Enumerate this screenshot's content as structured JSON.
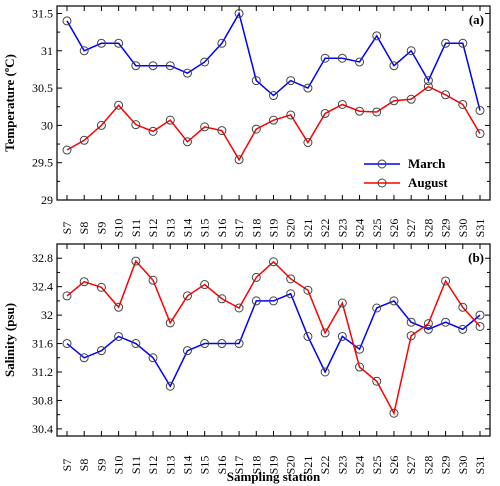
{
  "chart_data": [
    {
      "type": "line",
      "panel_label": "(a)",
      "ylabel": "Temperature (ºC)",
      "xlabel": "",
      "ylim": [
        29,
        31.6
      ],
      "yticks": [
        29,
        29.5,
        30,
        30.5,
        31,
        31.5
      ],
      "categories": [
        "S7",
        "S8",
        "S9",
        "S10",
        "S11",
        "S12",
        "S13",
        "S14",
        "S15",
        "S16",
        "S17",
        "S18",
        "S19",
        "S20",
        "S21",
        "S22",
        "S23",
        "S24",
        "S25",
        "S26",
        "S27",
        "S28",
        "S29",
        "S30",
        "S31"
      ],
      "legend": "lower-right",
      "series": [
        {
          "name": "March",
          "color": "#0000ff",
          "values": [
            31.4,
            31.0,
            31.1,
            31.1,
            30.8,
            30.8,
            30.8,
            30.7,
            30.85,
            31.1,
            31.5,
            30.6,
            30.4,
            30.6,
            30.5,
            30.9,
            30.9,
            30.85,
            31.2,
            30.8,
            31.0,
            30.6,
            31.1,
            31.1,
            30.2
          ]
        },
        {
          "name": "August",
          "color": "#ff0000",
          "values": [
            29.67,
            29.8,
            30.0,
            30.27,
            30.01,
            29.92,
            30.07,
            29.78,
            29.98,
            29.93,
            29.54,
            29.95,
            30.07,
            30.14,
            29.77,
            30.16,
            30.28,
            30.19,
            30.18,
            30.33,
            30.35,
            30.52,
            30.41,
            30.28,
            29.89
          ]
        }
      ]
    },
    {
      "type": "line",
      "panel_label": "(b)",
      "ylabel": "Salinity (psu)",
      "xlabel": "Sampling station",
      "ylim": [
        30.3,
        33.0
      ],
      "yticks": [
        30.4,
        30.8,
        31.2,
        31.6,
        32,
        32.4,
        32.8
      ],
      "categories": [
        "S7",
        "S8",
        "S9",
        "S10",
        "S11",
        "S12",
        "S13",
        "S14",
        "S15",
        "S16",
        "S17",
        "S18",
        "S19",
        "S20",
        "S21",
        "S22",
        "S23",
        "S24",
        "S25",
        "S26",
        "S27",
        "S28",
        "S29",
        "S30",
        "S31"
      ],
      "series": [
        {
          "name": "March",
          "color": "#0000ff",
          "values": [
            31.6,
            31.4,
            31.5,
            31.7,
            31.6,
            31.4,
            31.0,
            31.5,
            31.6,
            31.6,
            31.6,
            32.2,
            32.2,
            32.3,
            31.7,
            31.2,
            31.7,
            31.52,
            32.1,
            32.2,
            31.9,
            31.8,
            31.9,
            31.8,
            32.0
          ]
        },
        {
          "name": "August",
          "color": "#ff0000",
          "values": [
            32.27,
            32.47,
            32.39,
            32.11,
            32.76,
            32.49,
            31.89,
            32.27,
            32.43,
            32.23,
            32.1,
            32.53,
            32.75,
            32.51,
            32.35,
            31.75,
            32.17,
            31.27,
            31.07,
            30.62,
            31.71,
            31.88,
            32.48,
            32.11,
            31.84
          ]
        }
      ]
    }
  ]
}
